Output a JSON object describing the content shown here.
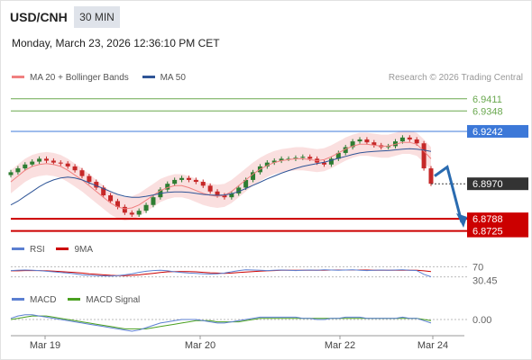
{
  "header": {
    "symbol": "USD/CNH",
    "timeframe": "30 MIN",
    "datetime": "Monday, March 23, 2026 12:36:10 PM CET",
    "source": "Research © 2026 Trading Central"
  },
  "legend": {
    "main": [
      {
        "label": "MA 20 + Bollinger Bands",
        "color": "#f08080"
      },
      {
        "label": "MA 50",
        "color": "#2f5597"
      }
    ],
    "rsi": [
      {
        "label": "RSI",
        "color": "#5b7fd1"
      },
      {
        "label": "9MA",
        "color": "#cc0000"
      }
    ],
    "macd": [
      {
        "label": "MACD",
        "color": "#5b7fd1"
      },
      {
        "label": "MACD Signal",
        "color": "#4aa020"
      }
    ]
  },
  "colors": {
    "resistance": "#6aa84f",
    "pivot": "#3c78d8",
    "support": "#cc0000",
    "last_price_bg": "#333333",
    "arrow": "#2a6bb0",
    "bull_candle": "#2e7d32",
    "bear_candle": "#c62828"
  },
  "chart_data": {
    "type": "candlestick",
    "instrument": "USD/CNH",
    "interval": "30 MIN",
    "x_ticks": [
      "Mar 19",
      "Mar 20",
      "Mar 22",
      "Mar 24"
    ],
    "ylim": [
      6.87,
      6.948
    ],
    "levels": [
      {
        "value": "6.9411",
        "kind": "resistance"
      },
      {
        "value": "6.9348",
        "kind": "resistance"
      },
      {
        "value": "6.9242",
        "kind": "pivot"
      },
      {
        "value": "6.8788",
        "kind": "support"
      },
      {
        "value": "6.8725",
        "kind": "support"
      }
    ],
    "last_price": "6.8970",
    "forecast_arrow": {
      "from": 6.901,
      "to": 6.877
    },
    "close_path": [
      6.903,
      6.905,
      6.907,
      6.9085,
      6.91,
      6.909,
      6.908,
      6.9075,
      6.906,
      6.904,
      6.901,
      6.898,
      6.895,
      6.891,
      6.888,
      6.885,
      6.882,
      6.881,
      6.883,
      6.886,
      6.89,
      6.894,
      6.897,
      6.899,
      6.9,
      6.899,
      6.898,
      6.896,
      6.893,
      6.891,
      6.89,
      6.892,
      6.895,
      6.899,
      6.903,
      6.906,
      6.908,
      6.909,
      6.91,
      6.91,
      6.9105,
      6.911,
      6.91,
      6.908,
      6.907,
      6.91,
      6.913,
      6.916,
      6.919,
      6.92,
      6.9185,
      6.917,
      6.916,
      6.9165,
      6.919,
      6.921,
      6.92,
      6.918,
      6.905,
      6.897
    ],
    "ma20": [
      6.898,
      6.901,
      6.904,
      6.906,
      6.907,
      6.9075,
      6.907,
      6.906,
      6.904,
      6.9015,
      6.899,
      6.896,
      6.893,
      6.89,
      6.887,
      6.885,
      6.884,
      6.8845,
      6.886,
      6.8885,
      6.891,
      6.8935,
      6.895,
      6.896,
      6.896,
      6.895,
      6.8935,
      6.892,
      6.891,
      6.8905,
      6.891,
      6.893,
      6.896,
      6.899,
      6.902,
      6.9045,
      6.9065,
      6.908,
      6.909,
      6.9095,
      6.91,
      6.91,
      6.9095,
      6.909,
      6.9095,
      6.911,
      6.913,
      6.915,
      6.9165,
      6.9175,
      6.9175,
      6.917,
      6.9165,
      6.9165,
      6.9175,
      6.9185,
      6.9185,
      6.9175,
      6.914,
      6.91
    ],
    "ma50": [
      6.886,
      6.888,
      6.8905,
      6.893,
      6.8955,
      6.8975,
      6.899,
      6.9,
      6.9005,
      6.9,
      6.899,
      6.8975,
      6.896,
      6.8945,
      6.893,
      6.8915,
      6.8905,
      6.89,
      6.89,
      6.8905,
      6.8912,
      6.892,
      6.8925,
      6.8928,
      6.8928,
      6.8925,
      6.892,
      6.8915,
      6.8912,
      6.891,
      6.8912,
      6.8918,
      6.893,
      6.8945,
      6.8962,
      6.8978,
      6.8995,
      6.901,
      6.9025,
      6.9038,
      6.905,
      6.906,
      6.9068,
      6.9075,
      6.9082,
      6.9092,
      6.9102,
      6.9112,
      6.9122,
      6.913,
      6.9135,
      6.9138,
      6.914,
      6.9142,
      6.9146,
      6.915,
      6.9152,
      6.915,
      6.9145,
      6.9138
    ],
    "bb_width": 0.006,
    "rsi": {
      "levels": [
        "70",
        "30.45"
      ],
      "values": [
        55,
        56,
        57,
        56,
        55,
        52,
        50,
        47,
        45,
        42,
        38,
        36,
        35,
        34,
        33,
        35,
        38,
        42,
        48,
        52,
        55,
        56,
        54,
        50,
        47,
        45,
        44,
        42,
        41,
        42,
        45,
        50,
        55,
        58,
        57,
        56,
        55,
        56,
        57,
        56,
        55,
        56,
        57,
        56,
        58,
        57,
        56,
        57,
        58,
        56,
        55,
        56,
        57,
        56,
        57,
        58,
        56,
        55,
        40,
        30.45
      ],
      "ma9": [
        54,
        54,
        55,
        55,
        55,
        54,
        53,
        51,
        49,
        47,
        45,
        42,
        40,
        38,
        36,
        35,
        35,
        36,
        38,
        41,
        44,
        47,
        50,
        51,
        51,
        51,
        50,
        48,
        46,
        45,
        44,
        45,
        47,
        49,
        51,
        53,
        54,
        55,
        56,
        56,
        56,
        56,
        56,
        56,
        56,
        57,
        57,
        57,
        57,
        57,
        57,
        56,
        56,
        56,
        56,
        56,
        56,
        56,
        54,
        51
      ]
    },
    "macd": {
      "zero_label": "0.00",
      "macd": [
        1,
        3,
        4,
        4,
        3,
        2,
        1,
        0,
        -1,
        -2,
        -3,
        -4,
        -5,
        -6,
        -7,
        -8,
        -9,
        -10,
        -9,
        -7,
        -5,
        -3,
        -2,
        -1,
        0,
        0,
        0,
        -1,
        -2,
        -3,
        -3,
        -2,
        -1,
        0,
        1,
        2,
        2,
        2,
        2,
        2,
        2,
        1,
        1,
        0,
        0,
        1,
        1,
        2,
        2,
        2,
        1,
        1,
        1,
        1,
        1,
        2,
        1,
        1,
        -1,
        -3
      ],
      "signal": [
        0,
        1,
        2,
        3,
        3,
        3,
        2,
        1,
        0,
        -1,
        -2,
        -3,
        -4,
        -5,
        -6,
        -7,
        -8,
        -8,
        -8,
        -8,
        -7,
        -6,
        -5,
        -4,
        -3,
        -2,
        -1,
        -1,
        -1,
        -2,
        -2,
        -2,
        -2,
        -1,
        0,
        1,
        1,
        1,
        1,
        1,
        1,
        1,
        1,
        1,
        1,
        1,
        1,
        1,
        1,
        1,
        1,
        1,
        1,
        1,
        1,
        1,
        1,
        1,
        0,
        -1
      ]
    }
  }
}
